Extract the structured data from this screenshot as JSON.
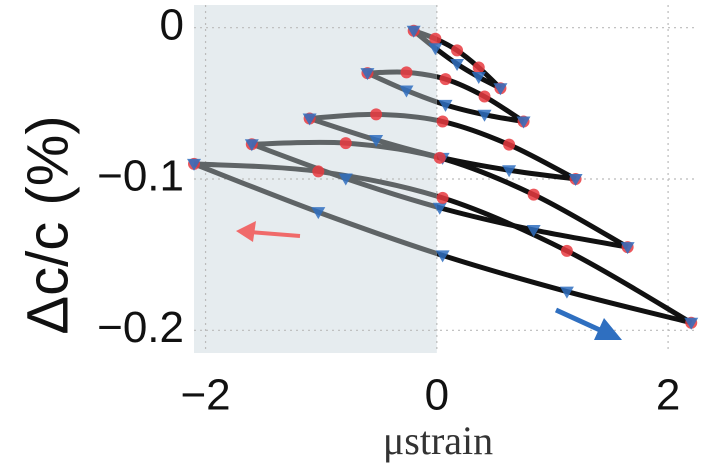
{
  "chart_data": {
    "type": "loop",
    "xlabel": "μstrain",
    "ylabel": "Δc/c (%)",
    "xlim": [
      -2.1,
      2.25
    ],
    "ylim": [
      -0.215,
      0.015
    ],
    "xticks": [
      {
        "value": -2,
        "label": "−2"
      },
      0,
      2
    ],
    "yticks": [
      0,
      {
        "value": -0.1,
        "label": "−0.1"
      },
      {
        "value": -0.2,
        "label": "−0.2"
      }
    ],
    "grid": true,
    "shaded_xrange": [
      -2.1,
      0
    ],
    "shade_color": "#e6ecef",
    "left_line_color": "#5f6466",
    "series": [
      {
        "color": "#111",
        "marker": "circle",
        "marker_color": "#e8393f",
        "x": [
          -0.2,
          -0.0125,
          0.175,
          0.3625,
          0.55
        ],
        "values": [
          -0.002,
          -0.0073,
          -0.015,
          -0.0263,
          -0.04
        ]
      },
      {
        "color": "#111",
        "marker": "triangle",
        "marker_color": "#2f6fc0",
        "x": [
          0.55,
          0.3625,
          0.175,
          -0.0125,
          -0.2
        ],
        "values": [
          -0.04,
          -0.0326,
          -0.024,
          -0.0136,
          -0.002
        ]
      },
      {
        "color": "#111",
        "marker": "circle",
        "marker_color": "#e8393f",
        "x": [
          -0.6,
          -0.2625,
          0.075,
          0.4125,
          0.75
        ],
        "values": [
          -0.03,
          -0.0295,
          -0.034,
          -0.0455,
          -0.062
        ]
      },
      {
        "color": "#111",
        "marker": "triangle",
        "marker_color": "#2f6fc0",
        "x": [
          0.75,
          0.4125,
          0.075,
          -0.2625,
          -0.6
        ],
        "values": [
          -0.062,
          -0.0575,
          -0.051,
          -0.0415,
          -0.03
        ]
      },
      {
        "color": "#111",
        "marker": "circle",
        "marker_color": "#e8393f",
        "x": [
          -1.1,
          -0.525,
          0.05,
          0.625,
          1.2
        ],
        "values": [
          -0.06,
          -0.0573,
          -0.062,
          -0.0773,
          -0.1
        ]
      },
      {
        "color": "#111",
        "marker": "triangle",
        "marker_color": "#2f6fc0",
        "x": [
          1.2,
          0.625,
          0.05,
          -0.525,
          -1.1
        ],
        "values": [
          -0.1,
          -0.0942,
          -0.086,
          -0.0742,
          -0.06
        ]
      },
      {
        "color": "#111",
        "marker": "circle",
        "marker_color": "#e8393f",
        "x": [
          -1.6,
          -0.7875,
          0.025,
          0.8375,
          1.65
        ],
        "values": [
          -0.077,
          -0.0763,
          -0.086,
          -0.1103,
          -0.145
        ]
      },
      {
        "color": "#111",
        "marker": "triangle",
        "marker_color": "#2f6fc0",
        "x": [
          1.65,
          0.8375,
          0.025,
          -0.7875,
          -1.6
        ],
        "values": [
          -0.145,
          -0.1337,
          -0.119,
          -0.0997,
          -0.077
        ]
      },
      {
        "color": "#111",
        "marker": "circle",
        "marker_color": "#e8393f",
        "x": [
          -2.1,
          -1.025,
          0.05,
          1.125,
          2.2
        ],
        "values": [
          -0.09,
          -0.095,
          -0.1125,
          -0.1475,
          -0.195
        ]
      },
      {
        "color": "#111",
        "marker": "triangle",
        "marker_color": "#2f6fc0",
        "x": [
          2.2,
          1.125,
          0.05,
          -1.025,
          -2.1
        ],
        "values": [
          -0.195,
          -0.1744,
          -0.1505,
          -0.1219,
          -0.09
        ]
      }
    ]
  }
}
